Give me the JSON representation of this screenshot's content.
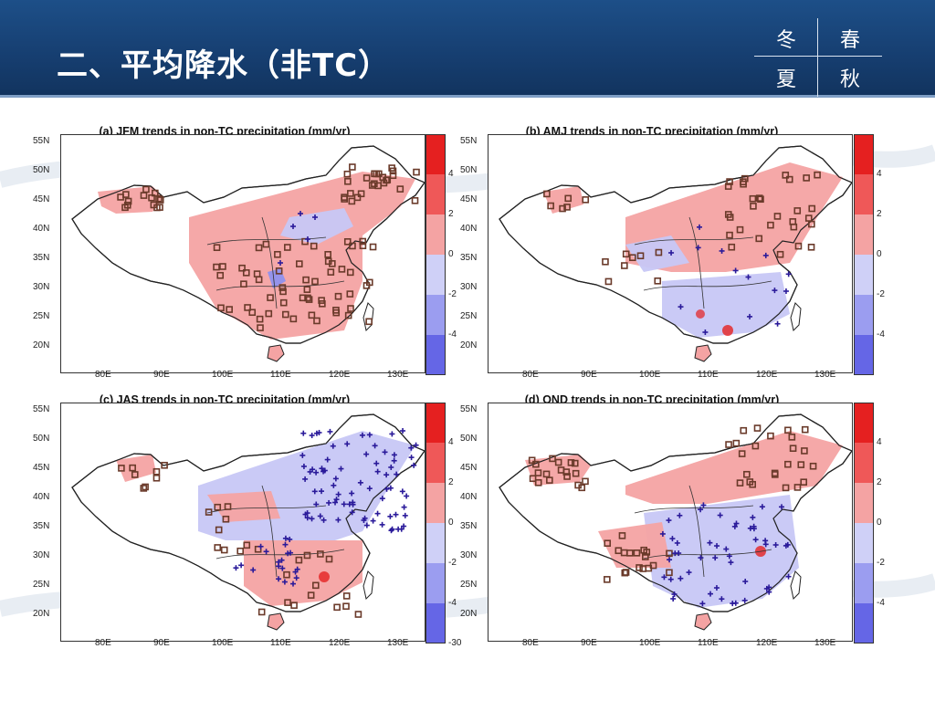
{
  "header": {
    "title": "二、平均降水（非TC）",
    "seasons": [
      "冬",
      "春",
      "夏",
      "秋"
    ]
  },
  "colors": {
    "header_bg": "#163e70",
    "positive_trend": "#f0a0a0",
    "negative_trend": "#c7c7f5",
    "marker_square": "#6a3a2a",
    "marker_plus": "#2a1a9a"
  },
  "colorbar": {
    "colors": [
      "#e52020",
      "#ef5858",
      "#f4a3a3",
      "#cfd0f7",
      "#9b9df0",
      "#6566e6"
    ],
    "labels": [
      "4",
      "2",
      "0",
      "-2",
      "-4"
    ],
    "labels_c": [
      "4",
      "2",
      "0",
      "-2",
      "-4",
      "-30"
    ]
  },
  "axes": {
    "lat_labels": [
      "55N",
      "50N",
      "45N",
      "40N",
      "35N",
      "30N",
      "25N",
      "20N"
    ],
    "lon_labels": [
      "80E",
      "90E",
      "100E",
      "110E",
      "120E",
      "130E"
    ]
  },
  "panels": [
    {
      "id": "a",
      "title": "(a) JFM trends in non-TC precipitation (mm/yr)"
    },
    {
      "id": "b",
      "title": "(b) AMJ trends in non-TC precipitation (mm/yr)"
    },
    {
      "id": "c",
      "title": "(c) JAS trends in non-TC precipitation (mm/yr)"
    },
    {
      "id": "d",
      "title": "(d) OND trends in non-TC precipitation (mm/yr)"
    }
  ]
}
